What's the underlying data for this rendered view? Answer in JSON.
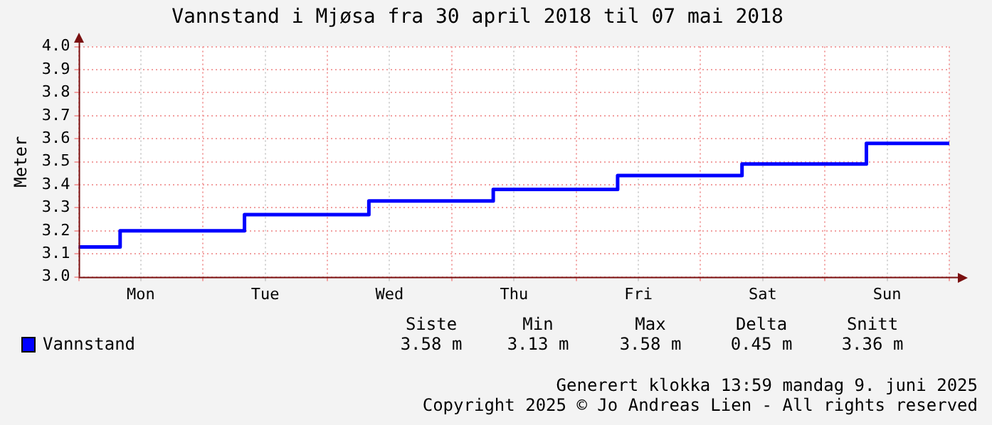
{
  "chart_data": {
    "type": "step",
    "title": "Vannstand i Mjøsa fra 30 april 2018 til 07 mai 2018",
    "ylabel": "Meter",
    "categories": [
      null,
      null,
      null,
      "Mon",
      null,
      null,
      null,
      null,
      null,
      "Tue",
      null,
      null,
      null,
      null,
      null,
      "Wed",
      null,
      null,
      null,
      null,
      null,
      "Thu",
      null,
      null,
      null,
      null,
      null,
      "Fri",
      null,
      null,
      null,
      null,
      null,
      "Sat",
      null,
      null,
      null,
      null,
      null,
      "Sun",
      null,
      null,
      null
    ],
    "series": [
      {
        "name": "Vannstand",
        "color": "#0000ff",
        "values": [
          3.13,
          3.13,
          3.2,
          3.2,
          3.2,
          3.2,
          3.2,
          3.2,
          3.27,
          3.27,
          3.27,
          3.27,
          3.27,
          3.27,
          3.33,
          3.33,
          3.33,
          3.33,
          3.33,
          3.33,
          3.38,
          3.38,
          3.38,
          3.38,
          3.38,
          3.38,
          3.44,
          3.44,
          3.44,
          3.44,
          3.44,
          3.44,
          3.49,
          3.49,
          3.49,
          3.49,
          3.49,
          3.49,
          3.58,
          3.58,
          3.58,
          3.58,
          3.58
        ]
      }
    ],
    "ylim": [
      3.0,
      4.0
    ],
    "yticks": [
      {
        "value": 3.0,
        "label": "3.0"
      },
      {
        "value": 3.1,
        "label": "3.1"
      },
      {
        "value": 3.2,
        "label": "3.2"
      },
      {
        "value": 3.3,
        "label": "3.3"
      },
      {
        "value": 3.4,
        "label": "3.4"
      },
      {
        "value": 3.5,
        "label": "3.5"
      },
      {
        "value": 3.6,
        "label": "3.6"
      },
      {
        "value": 3.7,
        "label": "3.7"
      },
      {
        "value": 3.8,
        "label": "3.8"
      },
      {
        "value": 3.9,
        "label": "3.9"
      },
      {
        "value": 4.0,
        "label": "4.0"
      }
    ],
    "grid": true,
    "legend": "bottom left",
    "marker": "none",
    "line_style": "solid",
    "annotations": [
      "Siste",
      "Min",
      "Max",
      "Delta",
      "Snitt",
      "3.58 m",
      "3.13 m",
      "3.58 m",
      "0.45 m",
      "3.36 m",
      "Generert klokka 13:59 mandag 9. juni 2025",
      "Copyright 2025 © Jo Andreas Lien - All rights reserved"
    ]
  }
}
